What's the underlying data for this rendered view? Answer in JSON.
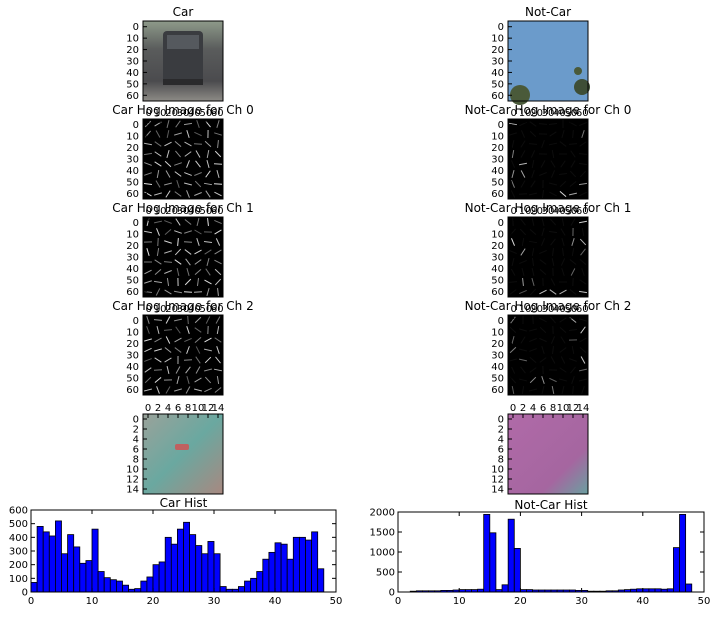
{
  "chart_data": [
    {
      "type": "image",
      "title": "Car",
      "image": "car-rgb",
      "x_ticks": [],
      "y_ticks": [
        "0",
        "10",
        "20",
        "30",
        "40",
        "50",
        "60"
      ]
    },
    {
      "type": "image",
      "title": "Not-Car",
      "image": "notcar-rgb",
      "x_ticks": [],
      "y_ticks": [
        "0",
        "10",
        "20",
        "30",
        "40",
        "50",
        "60"
      ]
    },
    {
      "type": "image",
      "title": "Car Hog Image for Ch 0",
      "image": "car-hog",
      "x_ticks": [
        "0",
        "10",
        "20",
        "30",
        "40",
        "50",
        "60"
      ],
      "y_ticks": [
        "0",
        "10",
        "20",
        "30",
        "40",
        "50",
        "60"
      ]
    },
    {
      "type": "image",
      "title": "Not-Car Hog Image for Ch 0",
      "image": "notcar-hog",
      "x_ticks": [
        "0",
        "10",
        "20",
        "30",
        "40",
        "50",
        "60"
      ],
      "y_ticks": [
        "0",
        "10",
        "20",
        "30",
        "40",
        "50",
        "60"
      ]
    },
    {
      "type": "image",
      "title": "Car Hog Image for Ch 1",
      "image": "car-hog",
      "x_ticks": [
        "0",
        "10",
        "20",
        "30",
        "40",
        "50",
        "60"
      ],
      "y_ticks": [
        "0",
        "10",
        "20",
        "30",
        "40",
        "50",
        "60"
      ]
    },
    {
      "type": "image",
      "title": "Not-Car Hog Image for Ch 1",
      "image": "notcar-hog",
      "x_ticks": [
        "0",
        "10",
        "20",
        "30",
        "40",
        "50",
        "60"
      ],
      "y_ticks": [
        "0",
        "10",
        "20",
        "30",
        "40",
        "50",
        "60"
      ]
    },
    {
      "type": "image",
      "title": "Car Hog Image for Ch 2",
      "image": "car-hog",
      "x_ticks": [
        "0",
        "10",
        "20",
        "30",
        "40",
        "50",
        "60"
      ],
      "y_ticks": [
        "0",
        "10",
        "20",
        "30",
        "40",
        "50",
        "60"
      ]
    },
    {
      "type": "image",
      "title": "Not-Car Hog Image for Ch 2",
      "image": "notcar-hog",
      "x_ticks": [
        "0",
        "10",
        "20",
        "30",
        "40",
        "50",
        "60"
      ],
      "y_ticks": [
        "0",
        "10",
        "20",
        "30",
        "40",
        "50",
        "60"
      ]
    },
    {
      "type": "image",
      "title": "",
      "image": "car-small",
      "x_ticks": [
        "0",
        "2",
        "4",
        "6",
        "8",
        "10",
        "12",
        "14"
      ],
      "y_ticks": [
        "0",
        "2",
        "4",
        "6",
        "8",
        "10",
        "12",
        "14"
      ]
    },
    {
      "type": "image",
      "title": "",
      "image": "notcar-small",
      "x_ticks": [
        "0",
        "2",
        "4",
        "6",
        "8",
        "10",
        "12",
        "14"
      ],
      "y_ticks": [
        "0",
        "2",
        "4",
        "6",
        "8",
        "10",
        "12",
        "14"
      ]
    },
    {
      "type": "bar",
      "title": "Car Hist",
      "bar_color": "#0000ff",
      "xlim": [
        0,
        50
      ],
      "ylim": [
        0,
        600
      ],
      "x_ticks": [
        "0",
        "10",
        "20",
        "30",
        "40",
        "50"
      ],
      "y_ticks": [
        "0",
        "100",
        "200",
        "300",
        "400",
        "500",
        "600"
      ],
      "values": [
        70,
        480,
        440,
        410,
        520,
        280,
        420,
        330,
        210,
        230,
        460,
        150,
        105,
        90,
        80,
        50,
        20,
        25,
        80,
        110,
        200,
        220,
        400,
        350,
        460,
        510,
        420,
        340,
        280,
        370,
        280,
        40,
        20,
        20,
        40,
        80,
        100,
        150,
        240,
        290,
        360,
        350,
        240,
        400,
        400,
        380,
        440,
        170
      ]
    },
    {
      "type": "bar",
      "title": "Not-Car Hist",
      "bar_color": "#0000ff",
      "xlim": [
        0,
        50
      ],
      "ylim": [
        0,
        2000
      ],
      "x_ticks": [
        "0",
        "10",
        "20",
        "30",
        "40",
        "50"
      ],
      "y_ticks": [
        "0",
        "500",
        "1000",
        "1500",
        "2000"
      ],
      "values": [
        0,
        0,
        20,
        30,
        30,
        30,
        30,
        40,
        40,
        50,
        60,
        60,
        60,
        70,
        1940,
        1480,
        60,
        180,
        1820,
        1090,
        60,
        60,
        50,
        50,
        50,
        50,
        50,
        50,
        50,
        40,
        40,
        20,
        20,
        20,
        30,
        30,
        50,
        60,
        70,
        80,
        80,
        80,
        80,
        70,
        80,
        1110,
        1940,
        200
      ]
    }
  ]
}
